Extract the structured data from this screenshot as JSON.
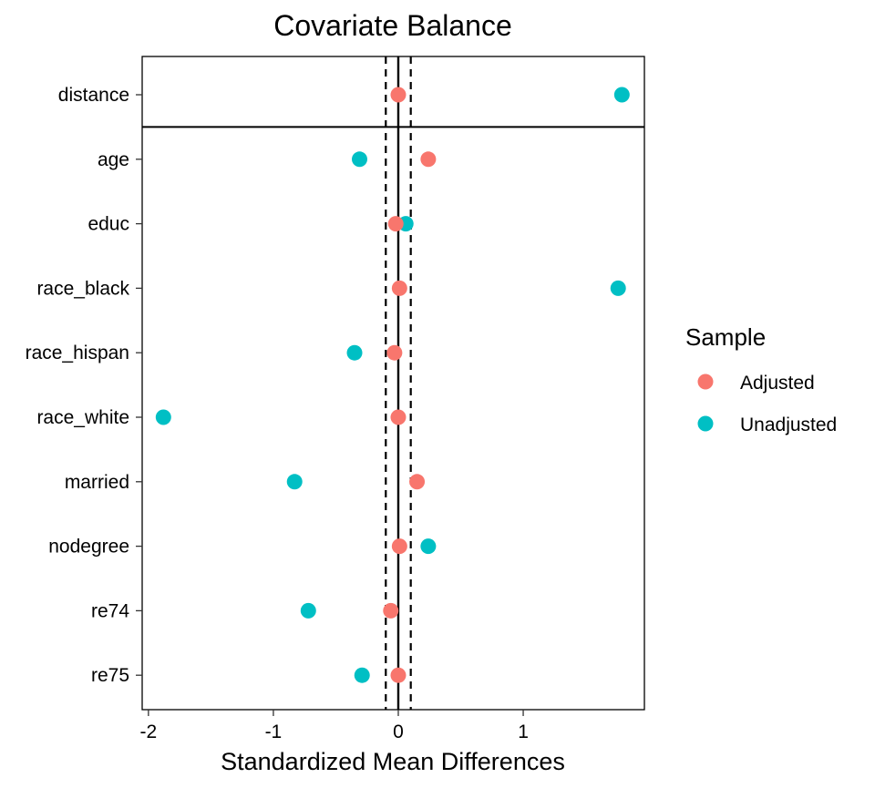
{
  "chart_data": {
    "type": "scatter",
    "title": "Covariate Balance",
    "xlabel": "Standardized Mean Differences",
    "ylabel": "",
    "xlim": [
      -2.05,
      1.97
    ],
    "xticks": [
      -2,
      -1,
      0,
      1
    ],
    "xtick_labels": [
      "-2",
      "-1",
      "0",
      "1"
    ],
    "threshold": 0.1,
    "grid": false,
    "categories": [
      "distance",
      "age",
      "educ",
      "race_black",
      "race_hispan",
      "race_white",
      "married",
      "nodegree",
      "re74",
      "re75"
    ],
    "separator_after": "distance",
    "legend": {
      "title": "Sample",
      "placement": "right"
    },
    "series": [
      {
        "name": "Adjusted",
        "color": "#F8766D",
        "values": [
          0.0,
          0.24,
          -0.02,
          0.01,
          -0.03,
          0.0,
          0.15,
          0.01,
          -0.06,
          0.0
        ]
      },
      {
        "name": "Unadjusted",
        "color": "#00BFC4",
        "values": [
          1.79,
          -0.31,
          0.06,
          1.76,
          -0.35,
          -1.88,
          -0.83,
          0.24,
          -0.72,
          -0.29
        ]
      }
    ]
  }
}
